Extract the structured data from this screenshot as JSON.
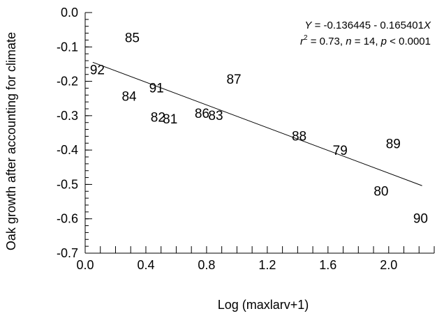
{
  "chart_data": {
    "type": "scatter",
    "title": "",
    "xlabel": "Log (maxlarv+1)",
    "ylabel": "Oak growth after accounting for climate",
    "xlim": [
      0.0,
      2.3
    ],
    "ylim": [
      -0.7,
      0.0
    ],
    "x_ticks": [
      {
        "value": 0.0,
        "label": "0.0"
      },
      {
        "value": 0.4,
        "label": "0.4"
      },
      {
        "value": 0.8,
        "label": "0.8"
      },
      {
        "value": 1.2,
        "label": "1.2"
      },
      {
        "value": 1.6,
        "label": "1.6"
      },
      {
        "value": 2.0,
        "label": "2.0"
      }
    ],
    "x_minor_step": 0.1,
    "y_ticks": [
      {
        "value": 0.0,
        "label": "0.0"
      },
      {
        "value": -0.1,
        "label": "-0.1"
      },
      {
        "value": -0.2,
        "label": "-0.2"
      },
      {
        "value": -0.3,
        "label": "-0.3"
      },
      {
        "value": -0.4,
        "label": "-0.4"
      },
      {
        "value": -0.5,
        "label": "-0.5"
      },
      {
        "value": -0.6,
        "label": "-0.6"
      },
      {
        "value": -0.7,
        "label": "-0.7"
      }
    ],
    "y_minor_step": 0.02,
    "grid": false,
    "marker": "year-label",
    "points": [
      {
        "label": "85",
        "x": 0.31,
        "y": -0.072
      },
      {
        "label": "92",
        "x": 0.08,
        "y": -0.165
      },
      {
        "label": "87",
        "x": 0.98,
        "y": -0.193
      },
      {
        "label": "91",
        "x": 0.47,
        "y": -0.218
      },
      {
        "label": "84",
        "x": 0.29,
        "y": -0.242
      },
      {
        "label": "86",
        "x": 0.77,
        "y": -0.292
      },
      {
        "label": "83",
        "x": 0.86,
        "y": -0.298
      },
      {
        "label": "82",
        "x": 0.48,
        "y": -0.303
      },
      {
        "label": "81",
        "x": 0.56,
        "y": -0.308
      },
      {
        "label": "88",
        "x": 1.41,
        "y": -0.358
      },
      {
        "label": "89",
        "x": 2.03,
        "y": -0.38
      },
      {
        "label": "79",
        "x": 1.68,
        "y": -0.4
      },
      {
        "label": "80",
        "x": 1.95,
        "y": -0.518
      },
      {
        "label": "90",
        "x": 2.21,
        "y": -0.598
      }
    ],
    "fit_line": {
      "intercept": -0.136445,
      "slope": -0.165401,
      "x_start": 0.05,
      "x_end": 2.22
    },
    "annotation": {
      "equation_parts": [
        "Y",
        " = -0.136445 - 0.165401",
        "X"
      ],
      "stats_parts": [
        "r",
        "2",
        " = 0.73, ",
        "n",
        " = 14, ",
        "p",
        " < 0.0001"
      ],
      "placement": "top-right"
    }
  }
}
